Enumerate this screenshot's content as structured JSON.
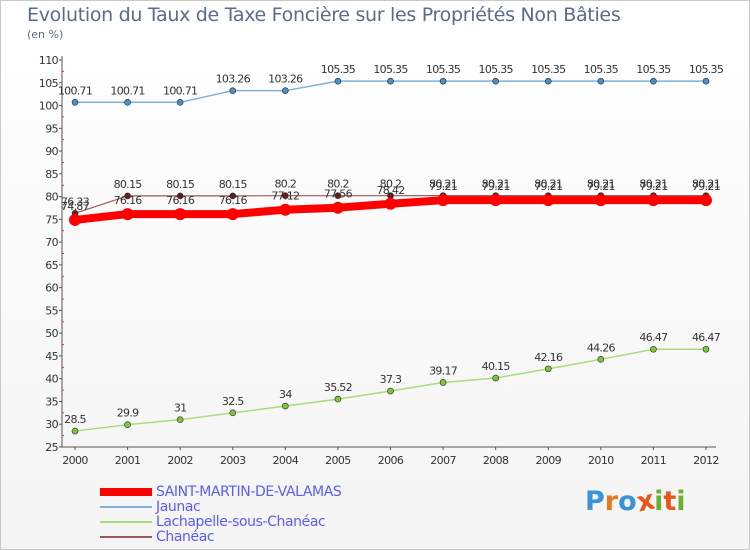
{
  "title": "Evolution du Taux de Taxe Foncière sur les Propriétés Non Bâties",
  "subtitle": "(en %)",
  "logo": {
    "letters": [
      "P",
      "r",
      "o",
      "x",
      "i",
      "t",
      "i"
    ],
    "colors": [
      "#3a93d8",
      "#e07a1c",
      "#3a93d8",
      "#e8561c",
      "#6ab02e",
      "#e8561c",
      "#6ab02e"
    ]
  },
  "chart_data": {
    "type": "line",
    "title": "Evolution du Taux de Taxe Foncière sur les Propriétés Non Bâties",
    "ylabel": "(en %)",
    "xlabel": "",
    "ylim": [
      25,
      110
    ],
    "yticks": [
      25,
      30,
      35,
      40,
      45,
      50,
      55,
      60,
      65,
      70,
      75,
      80,
      85,
      90,
      95,
      100,
      105,
      110
    ],
    "x": [
      "2000",
      "2001",
      "2002",
      "2003",
      "2004",
      "2005",
      "2006",
      "2007",
      "2008",
      "2009",
      "2010",
      "2011",
      "2012"
    ],
    "grid": false,
    "legend_position": "bottom-left",
    "series": [
      {
        "name": "Jaunac",
        "color": "#7fb0d8",
        "marker": "#4a8fc8",
        "width": 1.5,
        "radius": 3,
        "values": [
          100.71,
          100.71,
          100.71,
          103.26,
          103.26,
          105.35,
          105.35,
          105.35,
          105.35,
          105.35,
          105.35,
          105.35,
          105.35
        ],
        "labels": [
          "100.71",
          "100.71",
          "100.71",
          "103.26",
          "103.26",
          "105.35",
          "105.35",
          "105.35",
          "105.35",
          "105.35",
          "105.35",
          "105.35",
          "105.35"
        ]
      },
      {
        "name": "Lachapelle-sous-Chanéac",
        "color": "#a6dc7a",
        "marker": "#7cc63a",
        "width": 1.5,
        "radius": 3,
        "values": [
          28.5,
          29.9,
          31,
          32.5,
          34,
          35.52,
          37.3,
          39.17,
          40.15,
          42.16,
          44.26,
          46.47,
          46.47
        ],
        "labels": [
          "28.5",
          "29.9",
          "31",
          "32.5",
          "34",
          "35.52",
          "37.3",
          "39.17",
          "40.15",
          "42.16",
          "44.26",
          "46.47",
          "46.47"
        ]
      },
      {
        "name": "Chanéac",
        "color": "#9a5a5a",
        "marker": "#6b1b1b",
        "width": 1.2,
        "radius": 3,
        "values": [
          76.33,
          80.15,
          80.15,
          80.15,
          80.2,
          80.2,
          80.2,
          80.21,
          80.21,
          80.21,
          80.21,
          80.21,
          80.21
        ],
        "labels": [
          "76.33",
          "80.15",
          "80.15",
          "80.15",
          "80.2",
          "80.2",
          "80.2",
          "80.21",
          "80.21",
          "80.21",
          "80.21",
          "80.21",
          "80.21"
        ]
      },
      {
        "name": "SAINT-MARTIN-DE-VALAMAS",
        "color": "#ff0000",
        "marker": "#ff0000",
        "width": 8,
        "radius": 6,
        "values": [
          74.87,
          76.16,
          76.16,
          76.16,
          77.12,
          77.56,
          78.42,
          79.21,
          79.21,
          79.21,
          79.21,
          79.21,
          79.21
        ],
        "labels": [
          "74.87",
          "76.16",
          "76.16",
          "76.16",
          "77.12",
          "77.56",
          "78.42",
          "79.21",
          "79.21",
          "79.21",
          "79.21",
          "79.21",
          "79.21"
        ]
      }
    ],
    "legend": [
      "SAINT-MARTIN-DE-VALAMAS",
      "Jaunac",
      "Lachapelle-sous-Chanéac",
      "Chanéac"
    ]
  }
}
